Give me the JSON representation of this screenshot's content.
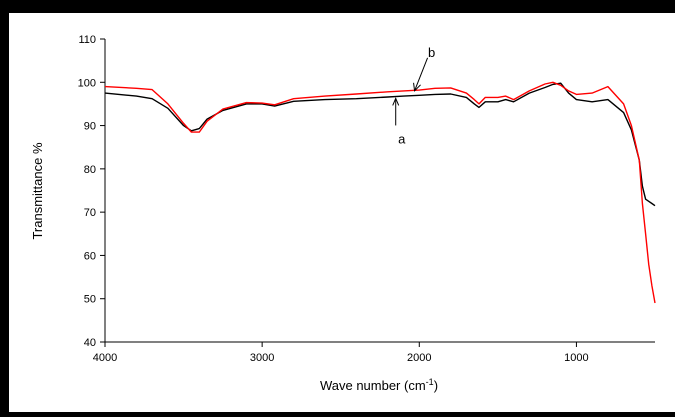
{
  "chart_data": {
    "type": "line",
    "xlabel": "Wave number (cm",
    "xlabel_sup": "-1",
    "xlabel_end": ")",
    "ylabel": "Transmittance %",
    "xlim": [
      4000,
      500
    ],
    "ylim": [
      40,
      110
    ],
    "x_ticks": [
      4000,
      3000,
      2000,
      1000
    ],
    "y_ticks": [
      40,
      50,
      60,
      70,
      80,
      90,
      100,
      110
    ],
    "grid": false,
    "annotations": [
      {
        "text": "a",
        "x": 2150,
        "y": 96.5
      },
      {
        "text": "b",
        "x": 2030,
        "y": 97.8
      }
    ],
    "series": [
      {
        "name": "a",
        "color": "#000000",
        "x": [
          4000,
          3800,
          3700,
          3600,
          3500,
          3450,
          3400,
          3350,
          3250,
          3100,
          3000,
          2920,
          2800,
          2600,
          2400,
          2200,
          2100,
          2000,
          1900,
          1800,
          1700,
          1650,
          1620,
          1580,
          1500,
          1450,
          1400,
          1300,
          1200,
          1150,
          1100,
          1050,
          1000,
          900,
          800,
          700,
          650,
          600,
          580,
          560,
          540,
          520,
          500
        ],
        "y": [
          97.5,
          96.8,
          96.2,
          94.0,
          90.0,
          88.8,
          89.3,
          91.5,
          93.5,
          95.0,
          95.0,
          94.5,
          95.6,
          96.0,
          96.2,
          96.6,
          96.8,
          97.0,
          97.2,
          97.3,
          96.5,
          95.0,
          94.2,
          95.5,
          95.5,
          96.0,
          95.5,
          97.5,
          98.8,
          99.5,
          99.8,
          97.5,
          96.0,
          95.5,
          96.0,
          93.0,
          89.0,
          82.0,
          76.0,
          73.0,
          72.5,
          72.0,
          71.5
        ]
      },
      {
        "name": "b",
        "color": "#ff0000",
        "x": [
          4000,
          3800,
          3700,
          3600,
          3500,
          3450,
          3400,
          3350,
          3250,
          3100,
          3000,
          2920,
          2800,
          2600,
          2400,
          2200,
          2100,
          2000,
          1900,
          1800,
          1700,
          1650,
          1620,
          1580,
          1500,
          1450,
          1400,
          1300,
          1200,
          1150,
          1100,
          1050,
          1000,
          900,
          800,
          700,
          650,
          600,
          580,
          560,
          540,
          520,
          500
        ],
        "y": [
          99.0,
          98.6,
          98.3,
          95.0,
          90.5,
          88.5,
          88.5,
          91.0,
          93.8,
          95.3,
          95.2,
          94.8,
          96.2,
          96.8,
          97.3,
          97.8,
          98.0,
          98.2,
          98.6,
          98.7,
          97.5,
          96.0,
          95.0,
          96.5,
          96.5,
          96.8,
          96.0,
          98.0,
          99.6,
          100.0,
          99.3,
          98.0,
          97.2,
          97.5,
          99.0,
          95.0,
          90.0,
          82.0,
          72.0,
          65.0,
          58.0,
          53.0,
          49.0
        ]
      }
    ]
  }
}
